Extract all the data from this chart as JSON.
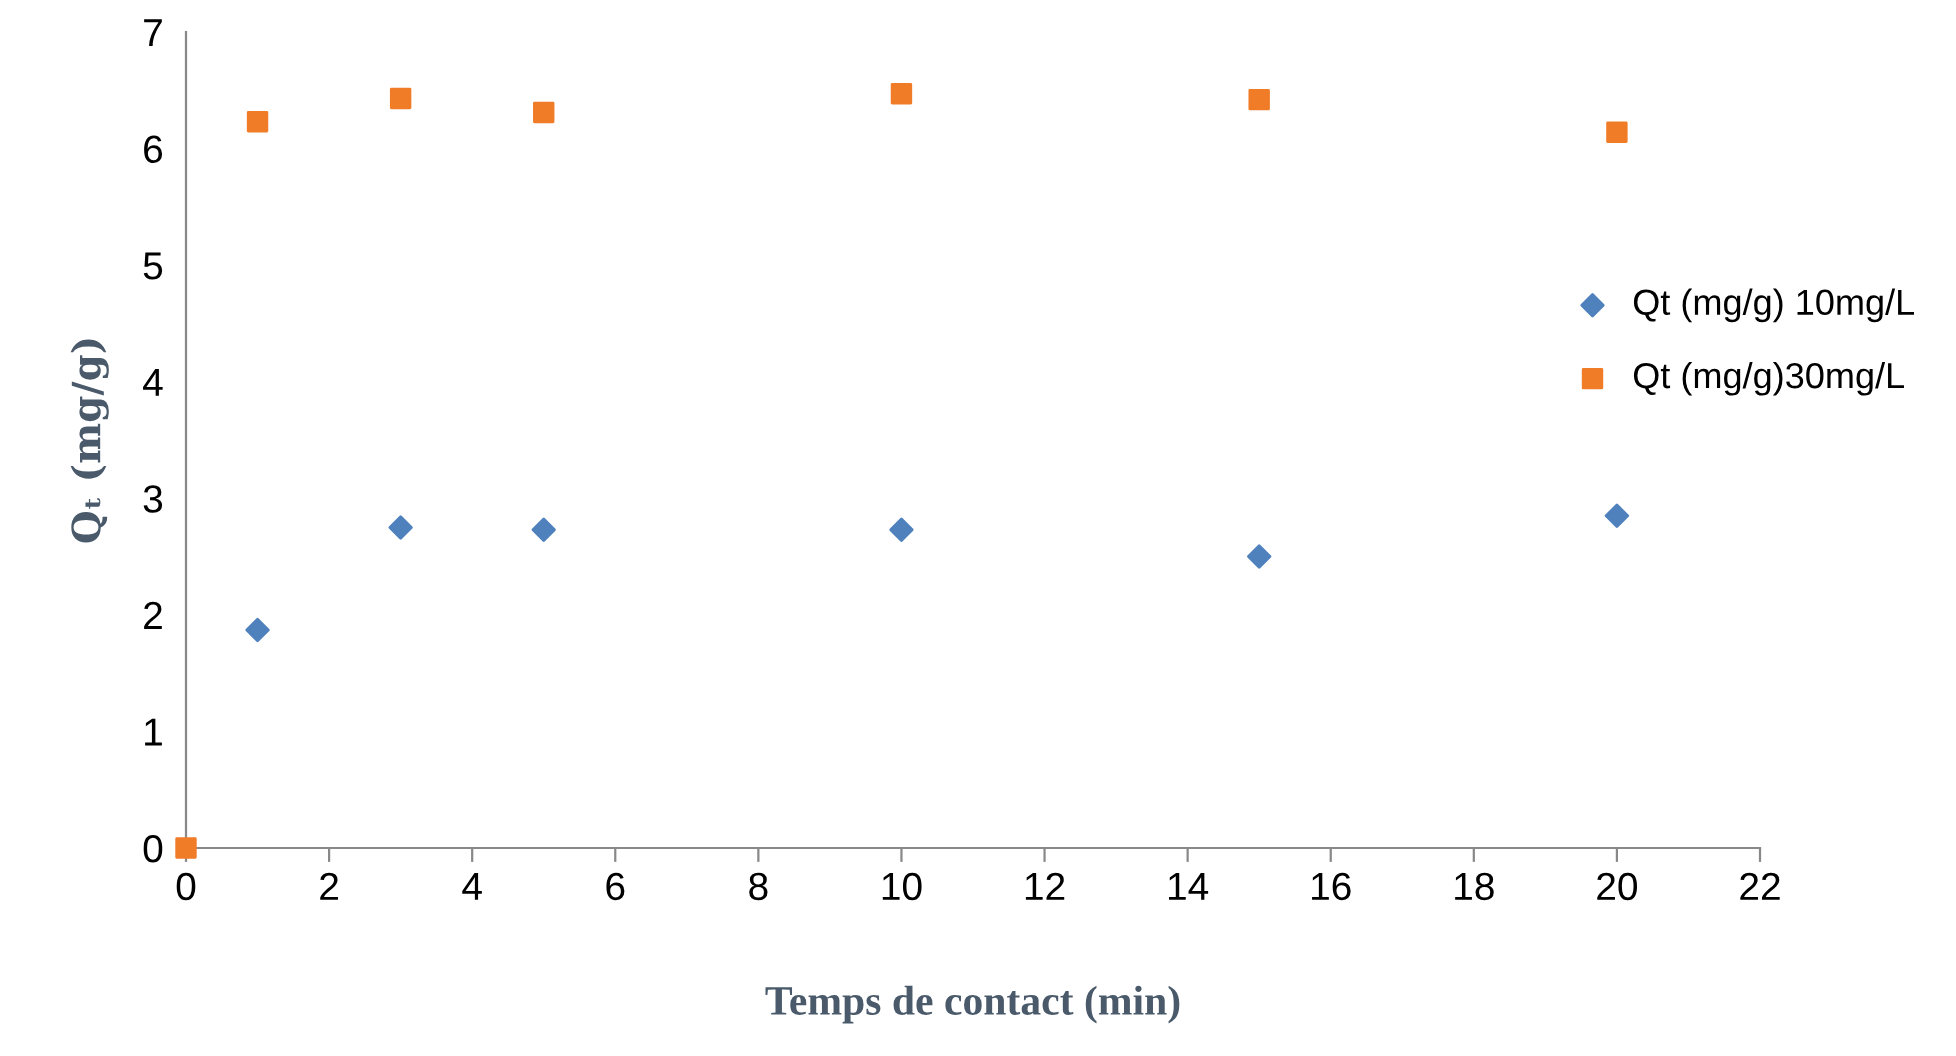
{
  "chart_data": {
    "type": "scatter",
    "xlabel": "Temps de contact (min)",
    "ylabel": "Qₜ (mg/g)",
    "xlim": [
      0,
      22
    ],
    "xticks": [
      0,
      2,
      4,
      6,
      8,
      10,
      12,
      14,
      16,
      18,
      20,
      22
    ],
    "ylim": [
      0,
      7
    ],
    "yticks": [
      0,
      1,
      2,
      3,
      4,
      5,
      6,
      7
    ],
    "grid": false,
    "legend": "right",
    "series": [
      {
        "name": "Qt (mg/g) 10mg/L",
        "color": "#4f81bd",
        "marker": "diamond",
        "x": [
          1,
          3,
          5,
          10,
          15,
          20
        ],
        "values": [
          1.87,
          2.75,
          2.73,
          2.73,
          2.5,
          2.85
        ]
      },
      {
        "name": "Qt (mg/g)30mg/L",
        "color": "#f07c28",
        "marker": "square",
        "x": [
          0,
          1,
          3,
          5,
          10,
          15,
          20
        ],
        "values": [
          0,
          6.23,
          6.43,
          6.31,
          6.47,
          6.42,
          6.14
        ]
      }
    ]
  }
}
